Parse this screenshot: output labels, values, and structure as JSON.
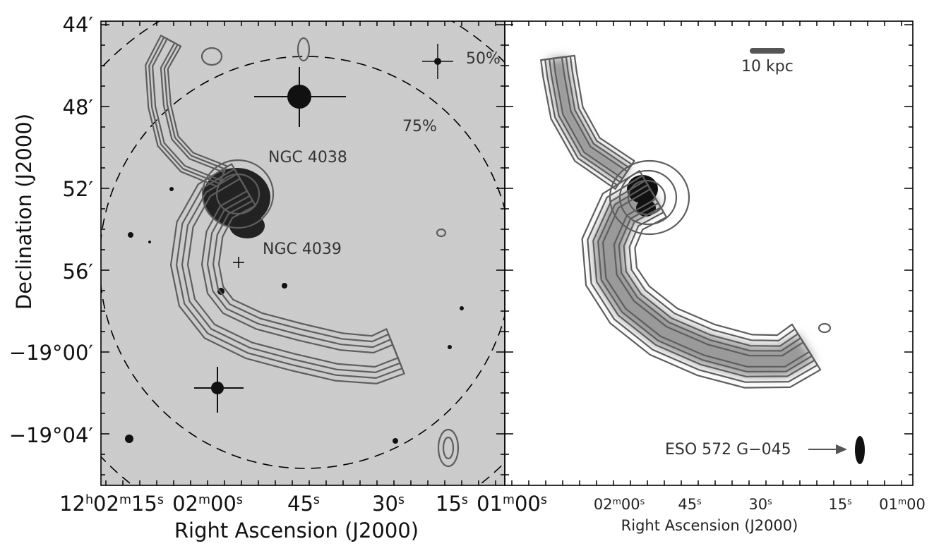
{
  "left_panel": {
    "y_axis_title": "Declination (J2000)",
    "y_tick_labels": [
      "44′",
      "48′",
      "52′",
      "56′",
      "−19°00′",
      "−19°04′"
    ],
    "x_tick_labels": [
      [
        "12",
        "h",
        "02",
        "m",
        "15",
        "s"
      ],
      [
        "02",
        "m",
        "00",
        "s"
      ],
      [
        "45",
        "s"
      ],
      [
        "30",
        "s"
      ],
      [
        "15",
        "s"
      ],
      [
        "01",
        "m",
        "00",
        "s"
      ]
    ],
    "x_axis_title": "Right Ascension (J2000)",
    "annotations": {
      "ngc4038": "NGC 4038",
      "ngc4039": "NGC 4039",
      "inner_circle": "75%",
      "outer_circle": "50%"
    }
  },
  "right_panel": {
    "x_tick_labels": [
      [
        "02",
        "m",
        "00",
        "s"
      ],
      [
        "45",
        "s"
      ],
      [
        "30",
        "s"
      ],
      [
        "15",
        "s"
      ],
      [
        "01",
        "m",
        "00"
      ]
    ],
    "x_axis_title": "Right Ascension (J2000)",
    "annotations": {
      "scale_bar": "10 kpc",
      "companion": "ESO 572 G−045"
    }
  }
}
